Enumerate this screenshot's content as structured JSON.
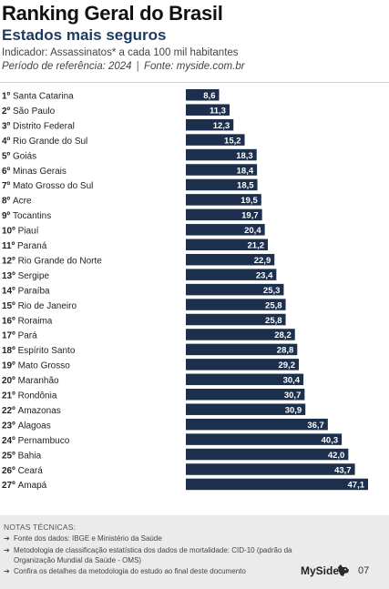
{
  "header": {
    "title": "Ranking Geral do Brasil",
    "subtitle": "Estados mais seguros",
    "indicator": "Indicador: Assassinatos* a cada 100 mil habitantes",
    "period": "Período de referência: 2024",
    "source": "Fonte: myside.com.br"
  },
  "chart_data": {
    "type": "bar",
    "orientation": "horizontal",
    "categories": [
      "1º Santa Catarina",
      "2º São Paulo",
      "3º Distrito Federal",
      "4º Rio Grande do Sul",
      "5º Goiás",
      "6º Minas Gerais",
      "7º Mato Grosso do Sul",
      "8º Acre",
      "9º Tocantins",
      "10º Piauí",
      "11º Paraná",
      "12º Rio Grande do Norte",
      "13º Sergipe",
      "14º Paraíba",
      "15º Rio de Janeiro",
      "16º Roraima",
      "17º Pará",
      "18º Espírito Santo",
      "19º Mato Grosso",
      "20º Maranhão",
      "21º Rondônia",
      "22º Amazonas",
      "23º Alagoas",
      "24º Pernambuco",
      "25º Bahia",
      "26º Ceará",
      "27º Amapá"
    ],
    "values": [
      8.6,
      11.3,
      12.3,
      15.2,
      18.3,
      18.4,
      18.5,
      19.5,
      19.7,
      20.4,
      21.2,
      22.9,
      23.4,
      25.3,
      25.8,
      25.8,
      28.2,
      28.8,
      29.2,
      30.4,
      30.7,
      30.9,
      36.7,
      40.3,
      42.0,
      43.7,
      47.1
    ],
    "labels": [
      "8,6",
      "11,3",
      "12,3",
      "15,2",
      "18,3",
      "18,4",
      "18,5",
      "19,5",
      "19,7",
      "20,4",
      "21,2",
      "22,9",
      "23,4",
      "25,3",
      "25,8",
      "25,8",
      "28,2",
      "28,8",
      "29,2",
      "30,4",
      "30,7",
      "30,9",
      "36,7",
      "40,3",
      "42,0",
      "43,7",
      "47,1"
    ],
    "bar_color": "#1c2f4d",
    "label_color": "#ffffff"
  },
  "footer": {
    "notes_title": "NOTAS TÉCNICAS:",
    "notes": [
      "Fonte dos dados: IBGE e Ministério da Saúde",
      "Metodologia de classificação estatística dos dados de mortalidade: CID-10 (padrão da Organização Mundial da Saúde - OMS)",
      "Confira os detalhes da metodologia do estudo ao final deste documento"
    ],
    "arrow": "➔",
    "brand": "MySide",
    "brand_icon": "dog-head-icon",
    "page_number": "07"
  }
}
